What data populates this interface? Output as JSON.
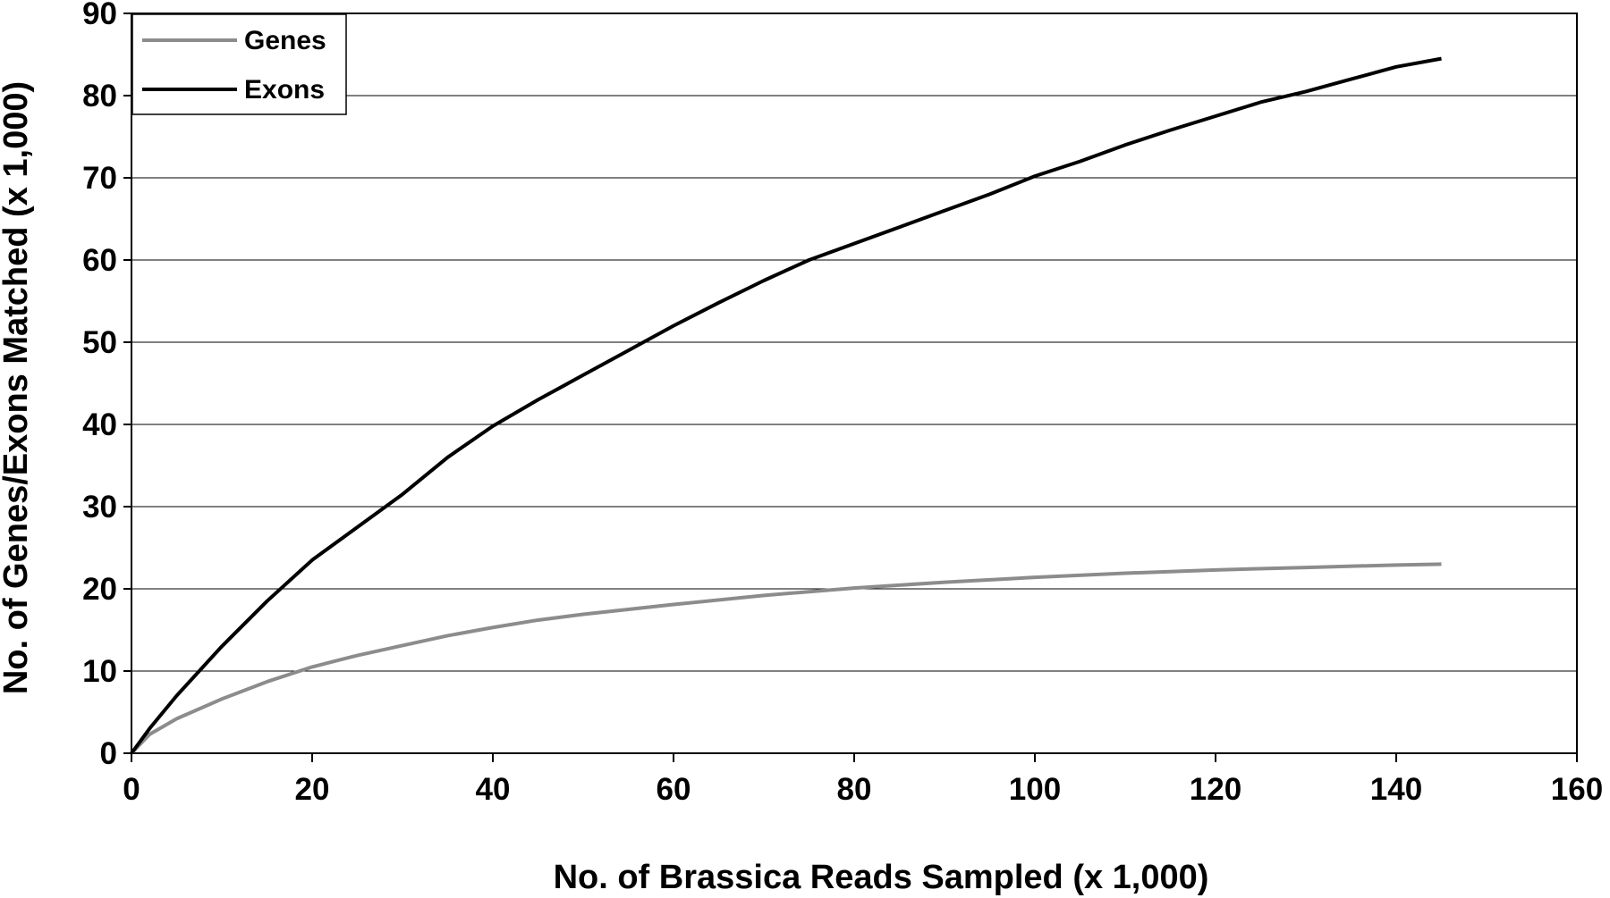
{
  "chart_data": {
    "type": "line",
    "title": "",
    "xlabel": "No. of Brassica Reads Sampled (x 1,000)",
    "ylabel": "No. of Genes/Exons Matched (x 1,000)",
    "xlim": [
      0,
      160
    ],
    "ylim": [
      0,
      90
    ],
    "xticks": [
      0,
      20,
      40,
      60,
      80,
      100,
      120,
      140,
      160
    ],
    "yticks": [
      0,
      10,
      20,
      30,
      40,
      50,
      60,
      70,
      80,
      90
    ],
    "grid": "horizontal",
    "legend": "top-left",
    "series": [
      {
        "name": "Genes",
        "color": "#8c8c8c",
        "x": [
          0,
          2,
          5,
          10,
          15,
          20,
          25,
          30,
          35,
          40,
          45,
          50,
          60,
          70,
          80,
          90,
          100,
          110,
          120,
          130,
          140,
          145
        ],
        "y": [
          0,
          2.3,
          4.2,
          6.6,
          8.7,
          10.5,
          11.9,
          13.1,
          14.3,
          15.3,
          16.2,
          16.9,
          18.1,
          19.2,
          20.1,
          20.8,
          21.4,
          21.9,
          22.3,
          22.6,
          22.9,
          23.0
        ]
      },
      {
        "name": "Exons",
        "color": "#000000",
        "x": [
          0,
          2,
          5,
          10,
          15,
          20,
          25,
          30,
          35,
          40,
          45,
          50,
          55,
          60,
          65,
          70,
          75,
          80,
          85,
          90,
          95,
          100,
          105,
          110,
          115,
          120,
          125,
          130,
          135,
          140,
          145
        ],
        "y": [
          0,
          3,
          7,
          13,
          18.5,
          23.5,
          27.5,
          31.5,
          36,
          39.8,
          43,
          46,
          49,
          52,
          54.8,
          57.5,
          60,
          62,
          64,
          66,
          68,
          70.2,
          72,
          74,
          75.8,
          77.5,
          79.2,
          80.5,
          82,
          83.5,
          84.5
        ]
      }
    ]
  }
}
